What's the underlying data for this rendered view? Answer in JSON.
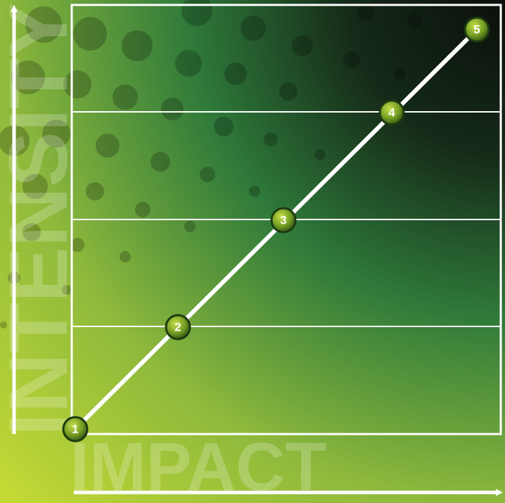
{
  "axes": {
    "y_label": "INTENSITY",
    "x_label": "IMPACT"
  },
  "nodes": [
    {
      "label": "1"
    },
    {
      "label": "2"
    },
    {
      "label": "3"
    },
    {
      "label": "4"
    },
    {
      "label": "5"
    }
  ]
}
